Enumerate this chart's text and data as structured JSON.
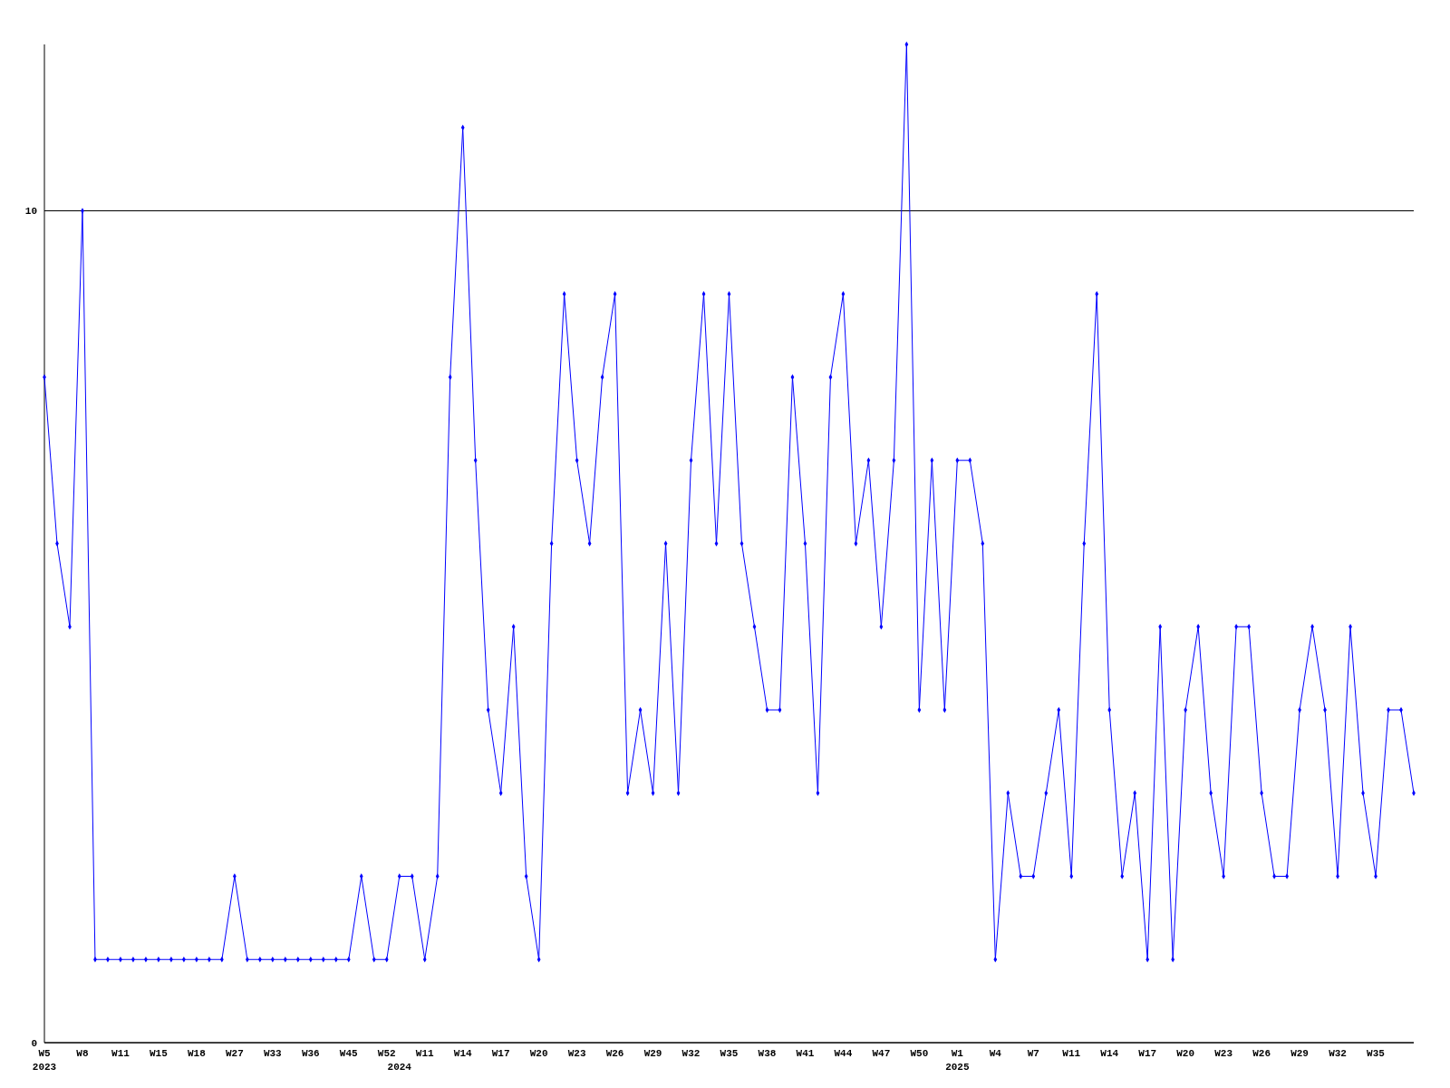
{
  "chart_data": {
    "type": "line",
    "categories": [
      "W5\n2023",
      null,
      null,
      "W8",
      null,
      null,
      "W11",
      null,
      null,
      "W15",
      null,
      null,
      "W18",
      null,
      null,
      "W27",
      null,
      null,
      "W33",
      null,
      null,
      "W36",
      null,
      null,
      "W45",
      null,
      null,
      "W52",
      "\n2024",
      null,
      "W11",
      null,
      null,
      "W14",
      null,
      null,
      "W17",
      null,
      null,
      "W20",
      null,
      null,
      "W23",
      null,
      null,
      "W26",
      null,
      null,
      "W29",
      null,
      null,
      "W32",
      null,
      null,
      "W35",
      null,
      null,
      "W38",
      null,
      null,
      "W41",
      null,
      null,
      "W44",
      null,
      null,
      "W47",
      null,
      null,
      "W50",
      null,
      null,
      "W1\n2025",
      null,
      null,
      "W4",
      null,
      null,
      "W7",
      null,
      null,
      "W11",
      null,
      null,
      "W14",
      null,
      null,
      "W17",
      null,
      null,
      "W20",
      null,
      null,
      "W23",
      null,
      null,
      "W26",
      null,
      null,
      "W29",
      null,
      null,
      "W32",
      null,
      null,
      "W35",
      null,
      null,
      null
    ],
    "series": [
      {
        "color": "#0000ff",
        "values": [
          8,
          6,
          5,
          10,
          1,
          1,
          1,
          1,
          1,
          1,
          1,
          1,
          1,
          1,
          1,
          2,
          1,
          1,
          1,
          1,
          1,
          1,
          1,
          1,
          1,
          2,
          1,
          1,
          2,
          2,
          1,
          2,
          8,
          11,
          7,
          4,
          3,
          5,
          2,
          1,
          6,
          9,
          7,
          6,
          8,
          9,
          3,
          4,
          3,
          6,
          3,
          7,
          9,
          6,
          9,
          6,
          5,
          4,
          4,
          8,
          6,
          3,
          8,
          9,
          6,
          7,
          5,
          7,
          12,
          4,
          7,
          4,
          7,
          7,
          6,
          1,
          3,
          2,
          2,
          3,
          4,
          2,
          6,
          9,
          4,
          2,
          3,
          1,
          5,
          1,
          4,
          5,
          3,
          2,
          5,
          5,
          3,
          2,
          2,
          4,
          5,
          4,
          2,
          5,
          3,
          2,
          4,
          4,
          3
        ]
      }
    ],
    "ylim": [
      0,
      12
    ],
    "yticks": [
      0,
      10
    ],
    "grid": "y",
    "marker": "diamond",
    "line_style": "solid"
  }
}
